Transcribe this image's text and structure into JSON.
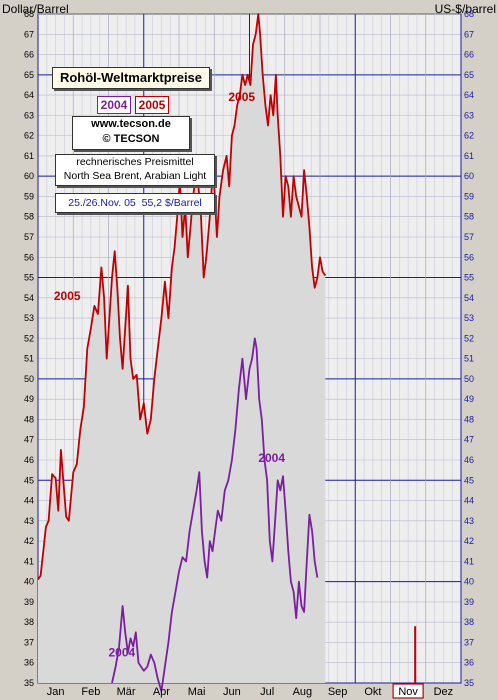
{
  "chart_data": {
    "type": "line",
    "title": "Rohöl-Weltmarktpreise",
    "ylabel_left": "Dollar/Barrel",
    "ylabel_right": "US-$/barrel",
    "ylim": [
      35,
      68
    ],
    "months": [
      "Jan",
      "Feb",
      "Mär",
      "Apr",
      "Mai",
      "Jun",
      "Jul",
      "Aug",
      "Sep",
      "Okt",
      "Nov",
      "Dez"
    ],
    "highlight_month": "Nov",
    "legend": [
      "2004",
      "2005"
    ],
    "source_url": "www.tecson.de",
    "source": "© TECSON",
    "note_line1": "rechnerisches Preismittel",
    "note_line2": "North Sea Brent, Arabian Light",
    "current_date": "25./26.Nov. 05",
    "current_price": "55,2 $/Barrel",
    "series": [
      {
        "name": "2005",
        "color": "#c00000",
        "label_positions": [
          [
            0.9,
            53.9
          ],
          [
            10.8,
            63.7
          ]
        ],
        "points": [
          [
            0.0,
            40.1
          ],
          [
            0.15,
            40.3
          ],
          [
            0.3,
            41.5
          ],
          [
            0.45,
            42.7
          ],
          [
            0.6,
            43.0
          ],
          [
            0.8,
            45.3
          ],
          [
            1.0,
            45.1
          ],
          [
            1.15,
            43.5
          ],
          [
            1.3,
            46.5
          ],
          [
            1.45,
            44.8
          ],
          [
            1.6,
            43.2
          ],
          [
            1.75,
            43.0
          ],
          [
            2.0,
            45.4
          ],
          [
            2.2,
            45.8
          ],
          [
            2.4,
            47.5
          ],
          [
            2.6,
            48.6
          ],
          [
            2.8,
            51.5
          ],
          [
            3.0,
            52.5
          ],
          [
            3.2,
            53.6
          ],
          [
            3.4,
            53.2
          ],
          [
            3.6,
            55.5
          ],
          [
            3.75,
            54.0
          ],
          [
            3.9,
            51.0
          ],
          [
            4.05,
            53.0
          ],
          [
            4.2,
            55.0
          ],
          [
            4.35,
            56.3
          ],
          [
            4.5,
            54.5
          ],
          [
            4.65,
            52.0
          ],
          [
            4.8,
            50.5
          ],
          [
            4.95,
            52.5
          ],
          [
            5.1,
            54.6
          ],
          [
            5.25,
            51.0
          ],
          [
            5.4,
            50.0
          ],
          [
            5.6,
            50.2
          ],
          [
            5.8,
            48.0
          ],
          [
            6.0,
            48.8
          ],
          [
            6.2,
            47.3
          ],
          [
            6.4,
            48.0
          ],
          [
            6.6,
            50.0
          ],
          [
            6.8,
            51.5
          ],
          [
            7.0,
            53.0
          ],
          [
            7.2,
            54.8
          ],
          [
            7.4,
            53.0
          ],
          [
            7.6,
            55.5
          ],
          [
            7.75,
            56.5
          ],
          [
            7.9,
            58.0
          ],
          [
            8.05,
            59.8
          ],
          [
            8.2,
            57.0
          ],
          [
            8.35,
            58.5
          ],
          [
            8.5,
            56.0
          ],
          [
            8.65,
            57.5
          ],
          [
            8.8,
            59.0
          ],
          [
            8.95,
            60.0
          ],
          [
            9.1,
            59.5
          ],
          [
            9.25,
            58.0
          ],
          [
            9.4,
            55.0
          ],
          [
            9.55,
            56.0
          ],
          [
            9.75,
            58.0
          ],
          [
            9.9,
            60.0
          ],
          [
            10.0,
            59.5
          ],
          [
            10.15,
            57.0
          ],
          [
            10.3,
            59.0
          ],
          [
            10.5,
            60.3
          ],
          [
            10.7,
            61.0
          ],
          [
            10.85,
            59.5
          ],
          [
            11.0,
            62.0
          ],
          [
            11.15,
            62.5
          ],
          [
            11.3,
            63.5
          ],
          [
            11.45,
            64.0
          ],
          [
            11.6,
            65.0
          ],
          [
            11.75,
            64.5
          ],
          [
            11.9,
            65.0
          ],
          [
            12.05,
            64.5
          ],
          [
            12.2,
            66.5
          ],
          [
            12.35,
            67.0
          ],
          [
            12.5,
            68.0
          ],
          [
            12.6,
            67.0
          ],
          [
            12.75,
            65.0
          ],
          [
            12.9,
            63.5
          ],
          [
            13.05,
            62.5
          ],
          [
            13.2,
            64.0
          ],
          [
            13.35,
            63.0
          ],
          [
            13.5,
            65.0
          ],
          [
            13.6,
            63.0
          ],
          [
            13.75,
            61.0
          ],
          [
            13.9,
            58.0
          ],
          [
            14.05,
            60.0
          ],
          [
            14.2,
            59.5
          ],
          [
            14.35,
            58.0
          ],
          [
            14.5,
            60.0
          ],
          [
            14.65,
            59.0
          ],
          [
            14.8,
            58.5
          ],
          [
            14.95,
            58.0
          ],
          [
            15.1,
            60.3
          ],
          [
            15.25,
            59.0
          ],
          [
            15.4,
            57.5
          ],
          [
            15.55,
            55.5
          ],
          [
            15.7,
            54.5
          ],
          [
            15.85,
            55.0
          ],
          [
            16.0,
            56.0
          ],
          [
            16.15,
            55.3
          ],
          [
            16.3,
            55.1
          ]
        ]
      },
      {
        "name": "2004",
        "color": "#7a1fa0",
        "label_positions": [
          [
            4.0,
            36.3
          ],
          [
            12.5,
            45.9
          ]
        ],
        "points": [
          [
            4.2,
            35.0
          ],
          [
            4.4,
            35.8
          ],
          [
            4.6,
            36.8
          ],
          [
            4.8,
            38.8
          ],
          [
            4.95,
            37.5
          ],
          [
            5.1,
            36.5
          ],
          [
            5.25,
            37.2
          ],
          [
            5.4,
            36.8
          ],
          [
            5.55,
            37.5
          ],
          [
            5.7,
            36.0
          ],
          [
            5.85,
            35.8
          ],
          [
            6.0,
            35.6
          ],
          [
            6.2,
            35.8
          ],
          [
            6.4,
            36.4
          ],
          [
            6.6,
            36.0
          ],
          [
            6.8,
            35.2
          ],
          [
            7.0,
            34.6
          ],
          [
            7.2,
            35.8
          ],
          [
            7.4,
            37.0
          ],
          [
            7.6,
            38.5
          ],
          [
            7.8,
            39.5
          ],
          [
            8.0,
            40.5
          ],
          [
            8.2,
            41.2
          ],
          [
            8.4,
            41.0
          ],
          [
            8.6,
            42.5
          ],
          [
            8.8,
            43.5
          ],
          [
            9.0,
            44.5
          ],
          [
            9.15,
            45.4
          ],
          [
            9.3,
            42.5
          ],
          [
            9.45,
            41.0
          ],
          [
            9.6,
            40.2
          ],
          [
            9.75,
            42.0
          ],
          [
            9.9,
            41.5
          ],
          [
            10.05,
            42.5
          ],
          [
            10.2,
            43.5
          ],
          [
            10.4,
            43.0
          ],
          [
            10.6,
            44.5
          ],
          [
            10.8,
            45.0
          ],
          [
            11.0,
            46.0
          ],
          [
            11.2,
            47.5
          ],
          [
            11.4,
            49.5
          ],
          [
            11.6,
            51.0
          ],
          [
            11.8,
            49.0
          ],
          [
            12.0,
            50.5
          ],
          [
            12.15,
            51.0
          ],
          [
            12.3,
            52.0
          ],
          [
            12.4,
            51.5
          ],
          [
            12.55,
            49.0
          ],
          [
            12.7,
            48.0
          ],
          [
            12.85,
            46.0
          ],
          [
            13.0,
            45.0
          ],
          [
            13.15,
            42.0
          ],
          [
            13.3,
            41.0
          ],
          [
            13.45,
            43.0
          ],
          [
            13.6,
            45.0
          ],
          [
            13.75,
            44.5
          ],
          [
            13.9,
            45.2
          ],
          [
            14.05,
            43.5
          ],
          [
            14.2,
            41.5
          ],
          [
            14.35,
            40.0
          ],
          [
            14.5,
            39.5
          ],
          [
            14.65,
            38.2
          ],
          [
            14.8,
            40.0
          ],
          [
            14.95,
            38.8
          ],
          [
            15.1,
            38.5
          ],
          [
            15.25,
            41.0
          ],
          [
            15.4,
            43.3
          ],
          [
            15.55,
            42.5
          ],
          [
            15.7,
            41.0
          ],
          [
            15.85,
            40.2
          ]
        ]
      }
    ]
  }
}
